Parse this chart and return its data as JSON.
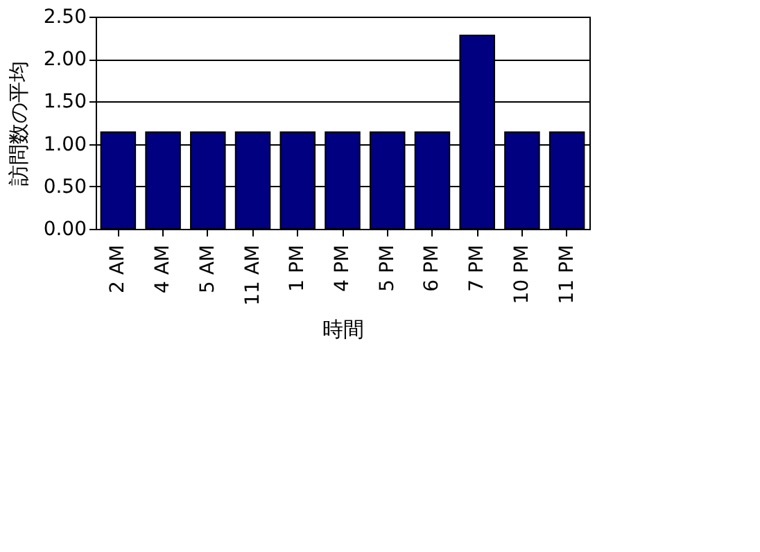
{
  "chart_data": {
    "type": "bar",
    "xlabel": "時間",
    "ylabel": "訪問数の平均",
    "categories": [
      "2 AM",
      "4 AM",
      "5 AM",
      "11 AM",
      "1 PM",
      "4 PM",
      "5 PM",
      "6 PM",
      "7 PM",
      "10 PM",
      "11 PM"
    ],
    "values": [
      1.14,
      1.14,
      1.14,
      1.14,
      1.14,
      1.14,
      1.14,
      1.14,
      2.28,
      1.14,
      1.14
    ],
    "color": "#000080",
    "ylim": [
      0,
      2.5
    ],
    "yticks": [
      {
        "value": 0,
        "label": "0.00"
      },
      {
        "value": 0.5,
        "label": "0.50"
      },
      {
        "value": 1,
        "label": "1.00"
      },
      {
        "value": 1.5,
        "label": "1.50"
      },
      {
        "value": 2,
        "label": "2.00"
      },
      {
        "value": 2.5,
        "label": "2.50"
      }
    ],
    "grid": "y"
  }
}
